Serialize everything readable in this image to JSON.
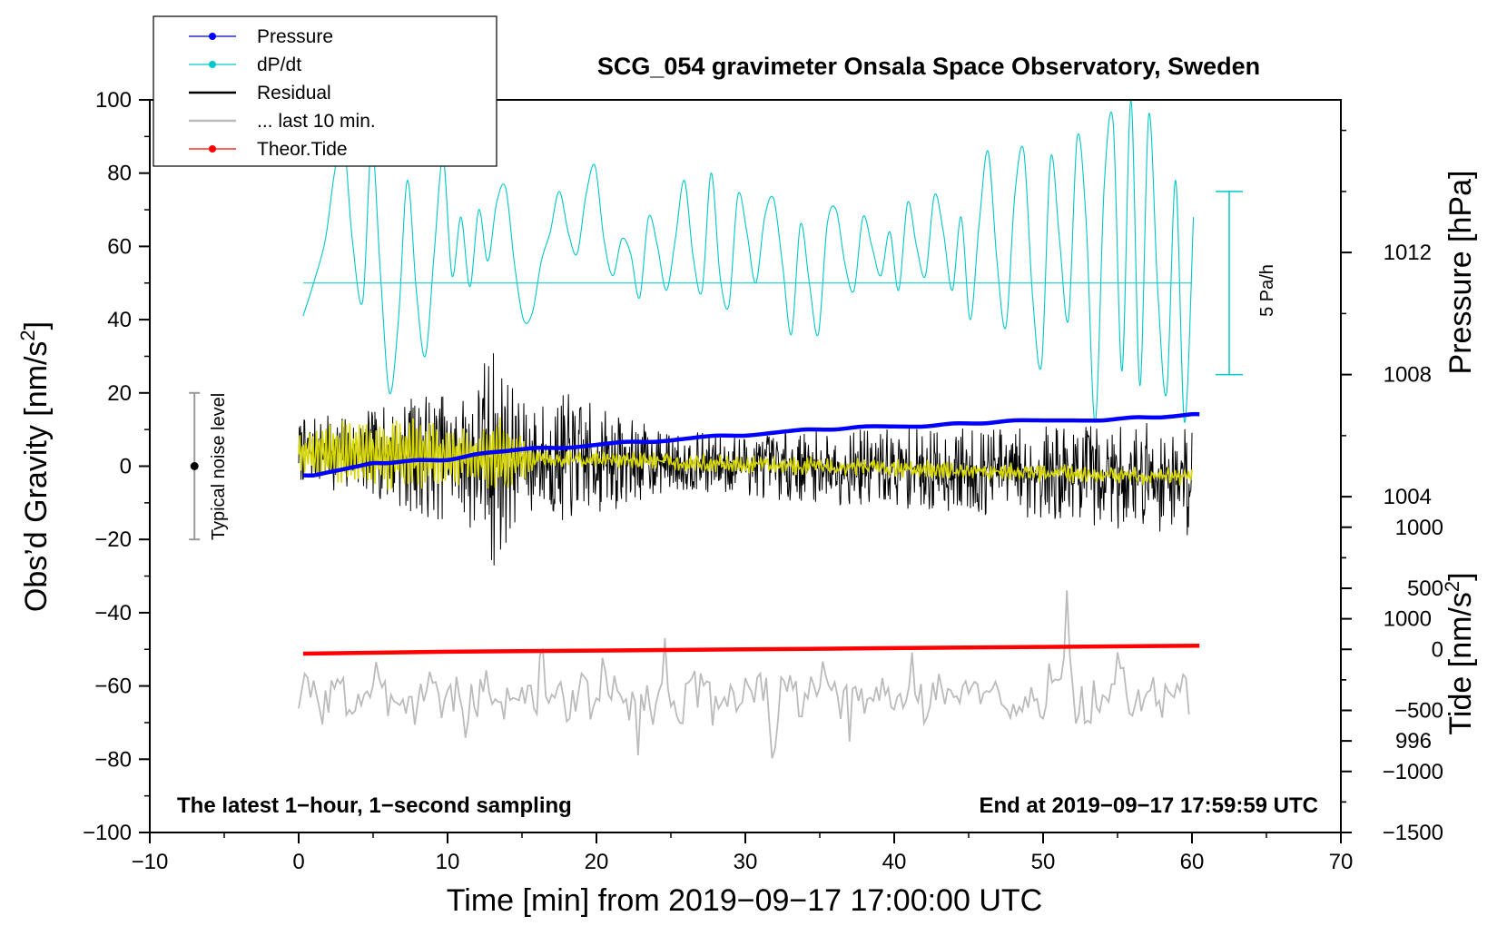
{
  "chart_data": {
    "type": "line",
    "title": "SCG_054 gravimeter Onsala Space Observatory, Sweden",
    "xlabel": "Time [min] from 2019−09−17 17:00:00 UTC",
    "ylabel_prefix": "Obs’d Gravity [nm/s",
    "ylabel_suffix": "]",
    "y_tide_label_prefix": "Tide [nm/s",
    "y_tide_label_suffix": "]",
    "unit_exponent": "2",
    "y_pressure_label": "Pressure [hPa]",
    "xlim": [
      -10,
      70
    ],
    "ylim": [
      -100,
      100
    ],
    "pressure_lim": [
      993,
      1017
    ],
    "tide_lim": [
      -1500,
      4500
    ],
    "x_ticks": [
      "−10",
      "0",
      "10",
      "20",
      "30",
      "40",
      "50",
      "60",
      "70"
    ],
    "y_ticks": [
      "100",
      "80",
      "60",
      "40",
      "20",
      "0",
      "−20",
      "−40",
      "−60",
      "−80",
      "−100"
    ],
    "pressure_ticks": [
      "1012",
      "1008",
      "1004",
      "1000",
      "996"
    ],
    "tide_ticks": [
      "1000",
      "500",
      "0",
      "−500",
      "−1000",
      "−1500"
    ],
    "note_left": "The latest 1−hour, 1−second sampling",
    "note_right": "End at 2019−09−17 17:59:59 UTC",
    "noise_label": "Typical noise level",
    "noise_bar": {
      "x": -7,
      "center": 0,
      "half_range": 20
    },
    "dpdt_scale_label": "5 Pa/h",
    "dpdt_scale_bar": {
      "x": 62.5,
      "low": 25,
      "high": 75
    },
    "dpdt_baseline": 50,
    "legend": [
      {
        "label": "Pressure",
        "color": "#0000ff",
        "marker": true
      },
      {
        "label": "dP/dt",
        "color": "#00c8c8",
        "marker": true
      },
      {
        "label": "Residual",
        "color": "#000000",
        "marker": false
      },
      {
        "label": "... last 10 min.",
        "color": "#bbbbbb",
        "marker": false
      },
      {
        "label": "Theor.Tide",
        "color": "#ff0000",
        "marker": true
      }
    ],
    "series": [
      {
        "name": "Pressure",
        "color": "#0000ff",
        "axis": "pressure",
        "x": [
          0.3,
          1,
          2,
          3,
          4,
          5,
          6,
          8,
          10,
          12,
          14,
          16,
          18,
          20,
          22,
          24,
          26,
          28,
          30,
          32,
          34,
          36,
          38,
          40,
          42,
          44,
          46,
          48,
          50,
          52,
          54,
          56,
          58,
          60,
          60.5
        ],
        "values": [
          1004.7,
          1004.7,
          1004.8,
          1004.9,
          1005.0,
          1005.1,
          1005.1,
          1005.2,
          1005.2,
          1005.4,
          1005.5,
          1005.6,
          1005.6,
          1005.7,
          1005.8,
          1005.8,
          1005.9,
          1006.0,
          1006.0,
          1006.1,
          1006.2,
          1006.2,
          1006.3,
          1006.3,
          1006.3,
          1006.4,
          1006.4,
          1006.5,
          1006.5,
          1006.5,
          1006.5,
          1006.6,
          1006.6,
          1006.7,
          1006.7
        ]
      },
      {
        "name": "dP/dt",
        "color": "#00c8c8",
        "axis": "gravity",
        "x": [
          0.3,
          1.0,
          1.8,
          2.4,
          3.0,
          3.6,
          4.3,
          4.9,
          5.5,
          6.1,
          6.7,
          7.3,
          7.9,
          8.5,
          9.1,
          9.7,
          10.3,
          10.9,
          11.5,
          12.1,
          12.7,
          13.3,
          13.9,
          14.5,
          15.1,
          15.7,
          16.3,
          16.9,
          17.5,
          18.1,
          18.7,
          19.3,
          19.9,
          20.5,
          21.1,
          21.7,
          22.3,
          22.9,
          23.5,
          24.1,
          24.7,
          25.3,
          25.9,
          26.5,
          27.1,
          27.7,
          28.3,
          28.9,
          29.5,
          30.1,
          30.7,
          31.3,
          31.9,
          32.5,
          33.1,
          33.7,
          34.3,
          34.9,
          35.5,
          36.1,
          36.7,
          37.3,
          37.9,
          38.5,
          39.1,
          39.7,
          40.3,
          40.9,
          41.5,
          42.1,
          42.7,
          43.3,
          43.9,
          44.5,
          45.1,
          45.7,
          46.3,
          46.9,
          47.5,
          48.1,
          48.7,
          49.3,
          49.9,
          50.5,
          51.1,
          51.7,
          52.3,
          52.9,
          53.5,
          54.1,
          54.7,
          55.3,
          55.9,
          56.5,
          57.1,
          57.7,
          58.3,
          58.9,
          59.5,
          60.1
        ],
        "values": [
          41,
          50,
          62,
          80,
          90,
          62,
          45,
          88,
          52,
          20,
          40,
          78,
          48,
          30,
          58,
          84,
          52,
          68,
          49,
          70,
          56,
          72,
          76,
          55,
          40,
          42,
          56,
          64,
          75,
          64,
          58,
          74,
          82,
          62,
          52,
          62,
          58,
          46,
          68,
          60,
          48,
          62,
          78,
          57,
          48,
          80,
          52,
          44,
          74,
          64,
          50,
          68,
          73,
          55,
          36,
          66,
          50,
          36,
          66,
          70,
          55,
          48,
          68,
          60,
          52,
          64,
          48,
          72,
          60,
          52,
          74,
          64,
          48,
          68,
          40,
          66,
          86,
          56,
          38,
          74,
          86,
          46,
          28,
          84,
          62,
          40,
          90,
          66,
          12,
          76,
          94,
          26,
          100,
          22,
          96,
          48,
          20,
          78,
          12,
          68
        ]
      },
      {
        "name": "Residual",
        "color": "#000000",
        "axis": "gravity",
        "x_range": [
          0,
          60
        ],
        "seed": 7,
        "trend": [
          4,
          -3
        ],
        "envelope": [
          [
            0,
            9
          ],
          [
            5,
            12
          ],
          [
            9,
            18
          ],
          [
            11,
            16
          ],
          [
            13,
            33
          ],
          [
            15,
            15
          ],
          [
            18,
            18
          ],
          [
            25,
            8
          ],
          [
            35,
            10
          ],
          [
            45,
            12
          ],
          [
            60,
            16
          ]
        ]
      },
      {
        "name": "... last 10 min.",
        "color": "#bbbbbb",
        "axis": "gravity",
        "x_range": [
          0,
          60
        ],
        "seed": 3,
        "base": -63,
        "amplitude": 6,
        "peaks": [
          [
            5.2,
            7
          ],
          [
            9.1,
            10
          ],
          [
            11.1,
            -12
          ],
          [
            12.3,
            6
          ],
          [
            16.3,
            12
          ],
          [
            20.4,
            6
          ],
          [
            22.8,
            -16
          ],
          [
            24.6,
            10
          ],
          [
            30.0,
            6
          ],
          [
            31.9,
            -14
          ],
          [
            35.2,
            6
          ],
          [
            37.0,
            -13
          ],
          [
            41.3,
            8
          ],
          [
            44.6,
            6
          ],
          [
            50.4,
            8
          ],
          [
            51.6,
            23
          ],
          [
            53.0,
            -14
          ],
          [
            54.9,
            8
          ],
          [
            55.3,
            7
          ],
          [
            59.5,
            9
          ]
        ]
      },
      {
        "name": "Theor.Tide",
        "color": "#ff0000",
        "axis": "tide",
        "x": [
          0.3,
          10,
          20,
          30,
          40,
          50,
          60.5
        ],
        "values": [
          -35,
          -20,
          -10,
          0,
          10,
          20,
          30
        ]
      }
    ]
  }
}
